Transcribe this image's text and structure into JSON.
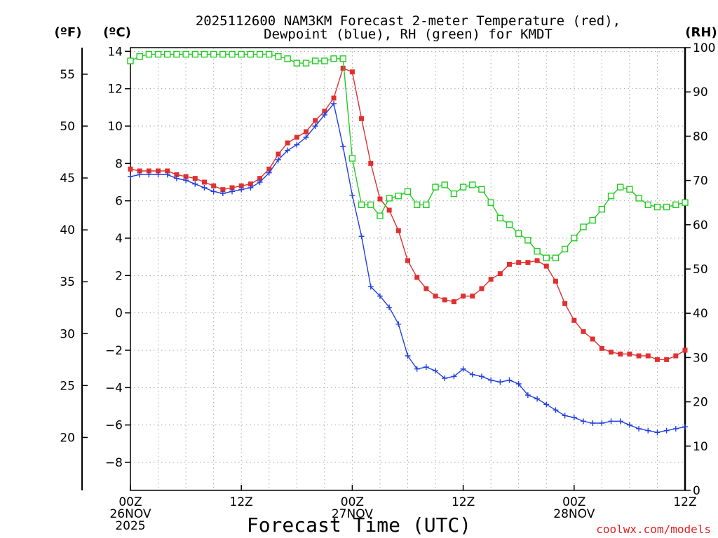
{
  "chart_data": {
    "type": "line",
    "title_line1": "2025112600 NAM3KM Forecast 2-meter Temperature (red),",
    "title_line2": "Dewpoint (blue), RH (green) for KMDT",
    "xlabel": "Forecast Time (UTC)",
    "credit": "coolwx.com/models",
    "units": {
      "fahrenheit": "(ºF)",
      "celsius": "(ºC)",
      "rh": "(RH)"
    },
    "x_range_hours": [
      0,
      60
    ],
    "celsius_range": [
      -9.5,
      14.2
    ],
    "rh_range": [
      0,
      100
    ],
    "celsius_ticks": [
      14,
      12,
      10,
      8,
      6,
      4,
      2,
      0,
      -2,
      -4,
      -6,
      -8
    ],
    "fahrenheit_ticks": [
      55,
      50,
      45,
      40,
      35,
      30,
      25,
      20
    ],
    "rh_ticks": [
      100,
      90,
      80,
      70,
      60,
      50,
      40,
      30,
      20,
      10,
      0
    ],
    "x_ticks": [
      {
        "hour": 0,
        "lines": [
          "00Z",
          "26NOV",
          "2025"
        ]
      },
      {
        "hour": 12,
        "lines": [
          "12Z"
        ]
      },
      {
        "hour": 24,
        "lines": [
          "00Z",
          "27NOV"
        ]
      },
      {
        "hour": 36,
        "lines": [
          "12Z"
        ]
      },
      {
        "hour": 48,
        "lines": [
          "00Z",
          "28NOV"
        ]
      },
      {
        "hour": 60,
        "lines": [
          "12Z"
        ]
      }
    ],
    "series": [
      {
        "name": "Temperature",
        "color": "#e03030",
        "marker": "filled-square",
        "axis": "celsius",
        "values": [
          7.7,
          7.6,
          7.6,
          7.6,
          7.6,
          7.4,
          7.3,
          7.2,
          7.0,
          6.8,
          6.6,
          6.7,
          6.8,
          6.9,
          7.2,
          7.7,
          8.5,
          9.1,
          9.4,
          9.7,
          10.3,
          10.8,
          11.5,
          13.1,
          12.9,
          10.4,
          8.0,
          6.1,
          5.5,
          4.4,
          2.8,
          1.9,
          1.3,
          0.9,
          0.7,
          0.6,
          0.9,
          0.9,
          1.3,
          1.8,
          2.1,
          2.6,
          2.7,
          2.7,
          2.8,
          2.5,
          1.7,
          0.5,
          -0.4,
          -1.0,
          -1.4,
          -1.9,
          -2.1,
          -2.2,
          -2.2,
          -2.3,
          -2.3,
          -2.5,
          -2.5,
          -2.3,
          -2.0
        ]
      },
      {
        "name": "Dewpoint",
        "color": "#2040e0",
        "marker": "plus",
        "axis": "celsius",
        "values": [
          7.3,
          7.4,
          7.4,
          7.4,
          7.4,
          7.2,
          7.1,
          6.9,
          6.7,
          6.5,
          6.4,
          6.5,
          6.6,
          6.7,
          7.0,
          7.5,
          8.2,
          8.7,
          9.0,
          9.4,
          10.0,
          10.6,
          11.2,
          8.9,
          6.3,
          4.1,
          1.4,
          0.9,
          0.3,
          -0.6,
          -2.3,
          -3.0,
          -2.9,
          -3.1,
          -3.5,
          -3.4,
          -3.0,
          -3.3,
          -3.4,
          -3.6,
          -3.7,
          -3.6,
          -3.8,
          -4.4,
          -4.6,
          -4.9,
          -5.2,
          -5.5,
          -5.6,
          -5.8,
          -5.9,
          -5.9,
          -5.8,
          -5.8,
          -6.0,
          -6.2,
          -6.3,
          -6.4,
          -6.3,
          -6.2,
          -6.1
        ]
      },
      {
        "name": "RH",
        "color": "#22cc22",
        "marker": "open-square",
        "axis": "rh",
        "values": [
          97,
          98,
          98.5,
          98.5,
          98.5,
          98.5,
          98.5,
          98.5,
          98.5,
          98.5,
          98.5,
          98.5,
          98.5,
          98.5,
          98.5,
          98.5,
          98,
          97.5,
          96.5,
          96.5,
          97,
          97,
          97.5,
          97.5,
          75,
          64.5,
          64.5,
          62,
          66,
          66.5,
          67.5,
          64.5,
          64.5,
          68.5,
          69,
          67,
          68.5,
          69,
          68,
          65,
          61.5,
          60,
          58,
          56.5,
          54,
          52.5,
          52.5,
          54.5,
          57,
          59.5,
          61,
          63.5,
          66.5,
          68.5,
          68,
          66,
          64.5,
          64,
          64,
          64.5,
          65
        ]
      }
    ]
  }
}
